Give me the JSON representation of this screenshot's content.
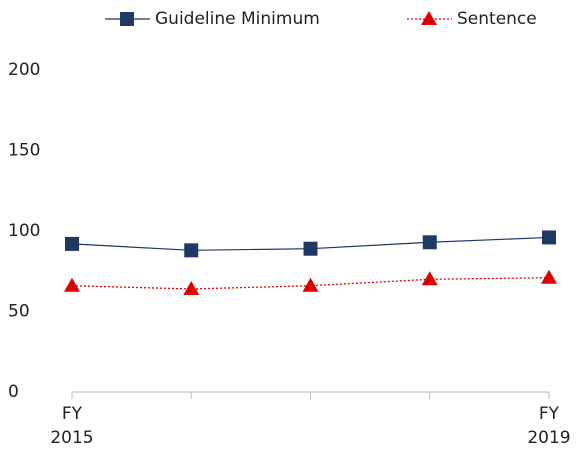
{
  "chart_data": {
    "type": "line",
    "categories": [
      "FY 2015",
      null,
      null,
      null,
      "FY 2019"
    ],
    "series": [
      {
        "name": "Guideline Minimum",
        "color": "#1f3864",
        "marker": "square",
        "line": "solid",
        "values": [
          92,
          88,
          89,
          93,
          96
        ]
      },
      {
        "name": "Sentence",
        "color": "#e00000",
        "marker": "triangle",
        "line": "dotted",
        "values": [
          66,
          64,
          66,
          70,
          71
        ]
      }
    ],
    "ylim": [
      0,
      200
    ],
    "yticks": [
      0,
      50,
      100,
      150,
      200
    ],
    "grid": false,
    "legend": "top"
  }
}
